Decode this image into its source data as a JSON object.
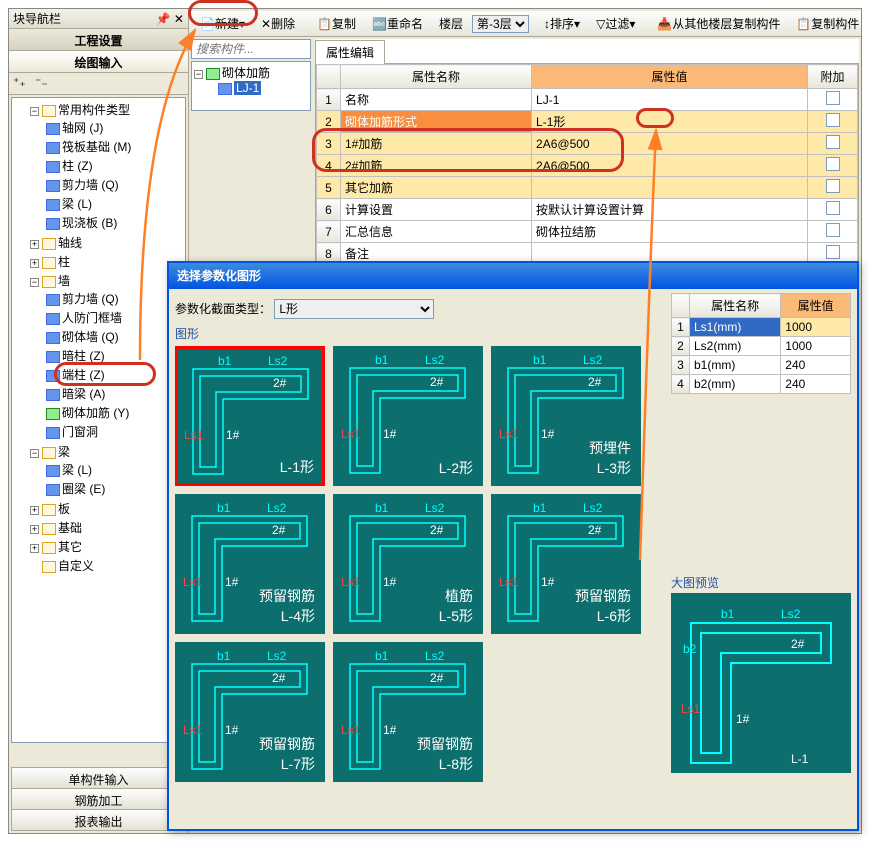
{
  "nav": {
    "title": "块导航栏",
    "sub1": "工程设置",
    "sub2": "绘图输入",
    "bottom": [
      "单构件输入",
      "钢筋加工",
      "报表输出"
    ]
  },
  "toolbar": {
    "new": "新建",
    "del": "删除",
    "copy": "复制",
    "rename": "重命名",
    "floor": "楼层",
    "floor_val": "第-3层",
    "sort": "排序",
    "filter": "过滤",
    "copyfrom": "从其他楼层复制构件",
    "copycomp": "复制构件"
  },
  "search_ph": "搜索构件...",
  "tree": {
    "root": "常用构件类型",
    "items": [
      "轴网 (J)",
      "筏板基础 (M)",
      "柱 (Z)",
      "剪力墙 (Q)",
      "梁 (L)",
      "现浇板 (B)"
    ],
    "groups": [
      "轴线",
      "柱",
      "墙",
      "梁",
      "板",
      "基础",
      "其它",
      "自定义"
    ],
    "wall_items": [
      "剪力墙 (Q)",
      "人防门框墙",
      "砌体墙 (Q)",
      "暗柱 (Z)",
      "端柱 (Z)",
      "暗梁 (A)",
      "砌体加筋 (Y)",
      "门窗洞"
    ],
    "beam_items": [
      "梁 (L)",
      "圈梁 (E)"
    ]
  },
  "comp": {
    "root": "砌体加筋",
    "sel": "LJ-1"
  },
  "prop": {
    "tab": "属性编辑",
    "cols": [
      "属性名称",
      "属性值",
      "附加"
    ],
    "rows": [
      {
        "n": "名称",
        "v": "LJ-1"
      },
      {
        "n": "砌体加筋形式",
        "v": "L-1形",
        "hl": true
      },
      {
        "n": "1#加筋",
        "v": "2A6@500",
        "hl": true
      },
      {
        "n": "2#加筋",
        "v": "2A6@500",
        "hl": true
      },
      {
        "n": "其它加筋",
        "v": "",
        "hl": true
      },
      {
        "n": "计算设置",
        "v": "按默认计算设置计算"
      },
      {
        "n": "汇总信息",
        "v": "砌体拉结筋"
      },
      {
        "n": "备注",
        "v": ""
      }
    ]
  },
  "modal": {
    "title": "选择参数化图形",
    "type_lbl": "参数化截面类型：",
    "type_val": "L形",
    "shapes_lbl": "图形",
    "shapes": [
      "L-1形",
      "L-2形",
      "预埋件\nL-3形",
      "预留钢筋\nL-4形",
      "植筋\nL-5形",
      "预留钢筋\nL-6形",
      "预留钢筋\nL-7形",
      "预留钢筋\nL-8形"
    ],
    "rprops": {
      "cols": [
        "属性名称",
        "属性值"
      ],
      "rows": [
        {
          "n": "Ls1(mm)",
          "v": "1000"
        },
        {
          "n": "Ls2(mm)",
          "v": "1000"
        },
        {
          "n": "b1(mm)",
          "v": "240"
        },
        {
          "n": "b2(mm)",
          "v": "240"
        }
      ]
    },
    "preview_lbl": "大图预览"
  },
  "colors": {
    "teal": "#0d6e6e",
    "cyan": "#00ffff",
    "hl": "#ffe9a8",
    "annot": "#d03020",
    "arrow": "#ff7f27"
  }
}
